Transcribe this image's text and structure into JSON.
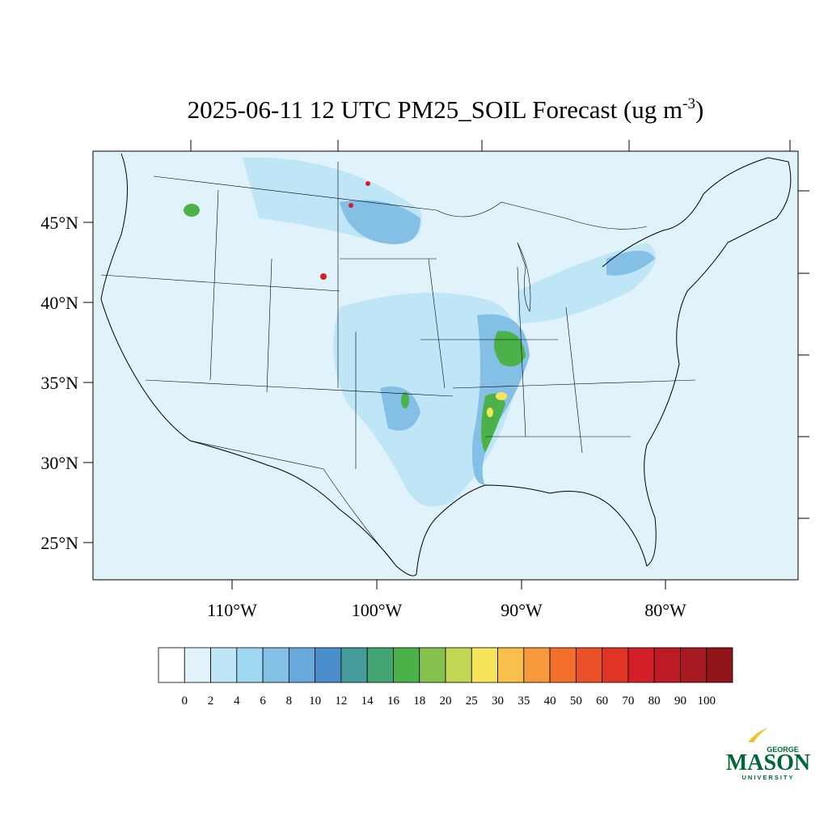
{
  "title": "2025-06-11 12 UTC PM25_SOIL Forecast (ug m",
  "title_superscript": "-3",
  "title_end": ")",
  "lat_labels": [
    "45°N",
    "40°N",
    "35°N",
    "30°N",
    "25°N"
  ],
  "lon_labels": [
    "110°W",
    "100°W",
    "90°W",
    "80°W"
  ],
  "colorbar": {
    "levels": [
      0,
      2,
      4,
      6,
      8,
      10,
      12,
      14,
      16,
      18,
      20,
      25,
      30,
      35,
      40,
      50,
      60,
      70,
      80,
      90,
      100
    ],
    "colors": [
      "#ffffff",
      "#e0f3fb",
      "#bfe6f7",
      "#9fd8f3",
      "#84bfe6",
      "#69a8da",
      "#4a8fcb",
      "#479b9b",
      "#44a473",
      "#4bb24a",
      "#85c24d",
      "#c2d655",
      "#f6e55a",
      "#f8c04b",
      "#f6993c",
      "#f26f2c",
      "#ea5129",
      "#e03425",
      "#d21f27",
      "#bd1b24",
      "#a81a22",
      "#8f1518"
    ]
  },
  "logo": {
    "top": "GEORGE",
    "main": "MASON",
    "bottom": "UNIVERSITY"
  }
}
